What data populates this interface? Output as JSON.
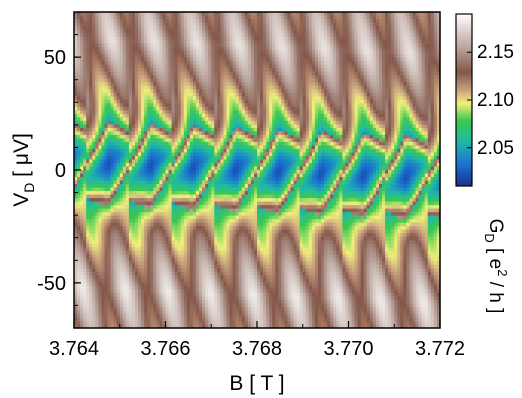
{
  "chart_data": {
    "type": "heatmap",
    "title": "",
    "xlabel": "B [ T ]",
    "ylabel_main": "V",
    "ylabel_sub": "D",
    "ylabel_unit": " [ μV]",
    "xlim": [
      3.764,
      3.772
    ],
    "ylim": [
      -70,
      70
    ],
    "x_ticks": [
      3.764,
      3.766,
      3.768,
      3.77,
      3.772
    ],
    "x_tick_labels": [
      "3.764",
      "3.766",
      "3.768",
      "3.770",
      "3.772"
    ],
    "y_ticks": [
      50,
      0,
      -50
    ],
    "y_tick_labels": [
      "50",
      "0",
      "-50"
    ],
    "colorbar": {
      "label_main": "G",
      "label_sub": "D",
      "label_unit": " [ e",
      "label_sup": "2",
      "label_end": " / h ]",
      "range": [
        2.01,
        2.19
      ],
      "ticks": [
        2.15,
        2.1,
        2.05
      ],
      "tick_labels": [
        "2.15",
        "2.10",
        "2.05"
      ]
    },
    "z_model": {
      "background": 2.14,
      "oscillation_period_T": 0.00093,
      "oscillation_phase_T": 3.76335,
      "diamond_half_width_uV": 19,
      "min_conductance": 2.02,
      "center_V_at_xmin_uV": 3,
      "center_V_at_xmax_uV": -4
    }
  }
}
